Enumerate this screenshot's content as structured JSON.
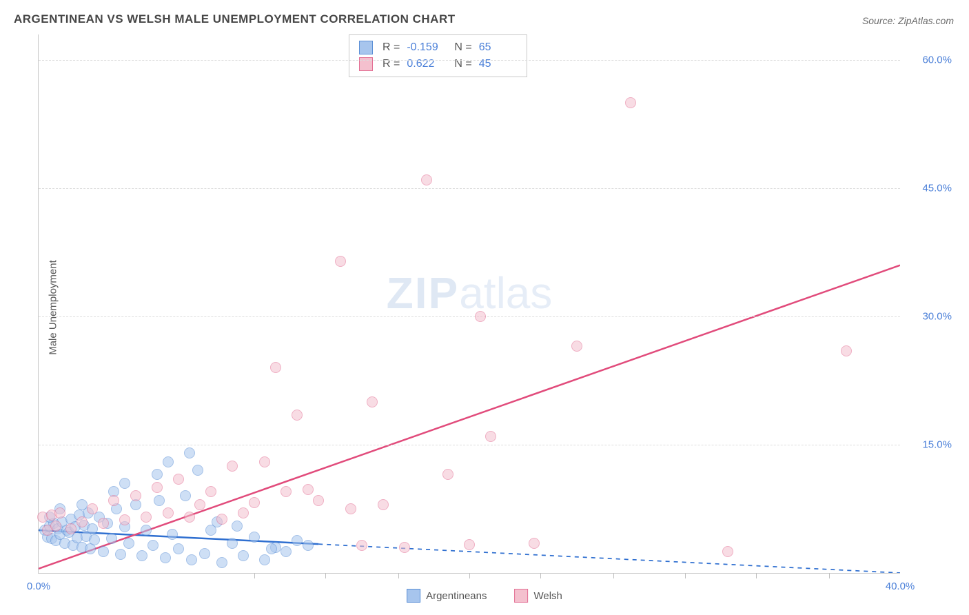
{
  "title": "ARGENTINEAN VS WELSH MALE UNEMPLOYMENT CORRELATION CHART",
  "source_prefix": "Source: ",
  "source_name": "ZipAtlas.com",
  "y_axis_label": "Male Unemployment",
  "watermark_zip": "ZIP",
  "watermark_atlas": "atlas",
  "chart": {
    "type": "scatter",
    "background_color": "#ffffff",
    "grid_color": "#dcdcdc",
    "axis_color": "#c8c8c8",
    "tick_label_color": "#4a7fd8",
    "tick_fontsize": 15,
    "x_range": [
      0,
      40
    ],
    "y_range": [
      0,
      63
    ],
    "y_ticks": [
      15,
      30,
      45,
      60
    ],
    "y_tick_labels": [
      "15.0%",
      "30.0%",
      "45.0%",
      "60.0%"
    ],
    "x_tick_start": "0.0%",
    "x_tick_end": "40.0%",
    "x_minor_ticks": [
      10,
      13.3,
      16.7,
      20,
      23.3,
      26.7,
      30,
      33.3,
      36.7
    ],
    "marker_radius": 8,
    "marker_opacity": 0.55,
    "series": [
      {
        "name": "Argentineans",
        "color_fill": "#a7c5ed",
        "color_stroke": "#5b8fd6",
        "R": "-0.159",
        "N": "65",
        "trend": {
          "x1": 0,
          "y1": 5.0,
          "x2": 40,
          "y2": 0.0,
          "solid_until_x": 13,
          "color": "#2f6fd0",
          "width": 2.5
        },
        "points": [
          [
            0.3,
            5.0
          ],
          [
            0.4,
            4.2
          ],
          [
            0.5,
            5.5
          ],
          [
            0.6,
            4.0
          ],
          [
            0.7,
            5.8
          ],
          [
            0.8,
            3.8
          ],
          [
            0.9,
            5.2
          ],
          [
            1.0,
            4.5
          ],
          [
            1.1,
            6.0
          ],
          [
            1.2,
            3.5
          ],
          [
            1.3,
            5.0
          ],
          [
            1.4,
            4.8
          ],
          [
            1.5,
            6.3
          ],
          [
            1.6,
            3.2
          ],
          [
            1.7,
            5.4
          ],
          [
            1.8,
            4.1
          ],
          [
            1.9,
            6.8
          ],
          [
            2.0,
            3.0
          ],
          [
            2.1,
            5.6
          ],
          [
            2.2,
            4.3
          ],
          [
            2.3,
            7.0
          ],
          [
            2.4,
            2.8
          ],
          [
            2.5,
            5.2
          ],
          [
            2.6,
            3.9
          ],
          [
            2.8,
            6.5
          ],
          [
            3.0,
            2.5
          ],
          [
            3.2,
            5.8
          ],
          [
            3.4,
            4.0
          ],
          [
            3.6,
            7.5
          ],
          [
            3.8,
            2.2
          ],
          [
            4.0,
            5.4
          ],
          [
            4.2,
            3.5
          ],
          [
            4.5,
            8.0
          ],
          [
            4.8,
            2.0
          ],
          [
            5.0,
            5.0
          ],
          [
            5.3,
            3.2
          ],
          [
            5.6,
            8.5
          ],
          [
            5.9,
            1.8
          ],
          [
            6.2,
            4.5
          ],
          [
            6.5,
            2.8
          ],
          [
            6.8,
            9.0
          ],
          [
            7.1,
            1.5
          ],
          [
            7.4,
            12.0
          ],
          [
            7.7,
            2.3
          ],
          [
            8.0,
            5.0
          ],
          [
            8.5,
            1.2
          ],
          [
            9.0,
            3.5
          ],
          [
            9.5,
            2.0
          ],
          [
            10.0,
            4.2
          ],
          [
            10.5,
            1.5
          ],
          [
            11.0,
            3.0
          ],
          [
            11.5,
            2.5
          ],
          [
            12.0,
            3.8
          ],
          [
            7.0,
            14.0
          ],
          [
            3.5,
            9.5
          ],
          [
            2.0,
            8.0
          ],
          [
            1.0,
            7.5
          ],
          [
            0.5,
            6.5
          ],
          [
            4.0,
            10.5
          ],
          [
            5.5,
            11.5
          ],
          [
            6.0,
            13.0
          ],
          [
            8.3,
            6.0
          ],
          [
            9.2,
            5.5
          ],
          [
            10.8,
            2.8
          ],
          [
            12.5,
            3.2
          ]
        ]
      },
      {
        "name": "Welsh",
        "color_fill": "#f4c0ce",
        "color_stroke": "#e36f94",
        "R": "0.622",
        "N": "45",
        "trend": {
          "x1": 0,
          "y1": 0.5,
          "x2": 40,
          "y2": 36.0,
          "solid_until_x": 40,
          "color": "#e14b7b",
          "width": 2.5
        },
        "points": [
          [
            0.2,
            6.5
          ],
          [
            0.4,
            5.0
          ],
          [
            0.6,
            6.8
          ],
          [
            0.8,
            5.5
          ],
          [
            1.0,
            7.0
          ],
          [
            1.5,
            5.2
          ],
          [
            2.0,
            6.0
          ],
          [
            2.5,
            7.5
          ],
          [
            3.0,
            5.8
          ],
          [
            3.5,
            8.5
          ],
          [
            4.0,
            6.2
          ],
          [
            4.5,
            9.0
          ],
          [
            5.0,
            6.5
          ],
          [
            5.5,
            10.0
          ],
          [
            6.0,
            7.0
          ],
          [
            6.5,
            11.0
          ],
          [
            7.0,
            6.5
          ],
          [
            7.5,
            8.0
          ],
          [
            8.0,
            9.5
          ],
          [
            8.5,
            6.3
          ],
          [
            9.0,
            12.5
          ],
          [
            9.5,
            7.0
          ],
          [
            10.0,
            8.2
          ],
          [
            10.5,
            13.0
          ],
          [
            11.0,
            24.0
          ],
          [
            11.5,
            9.5
          ],
          [
            12.0,
            18.5
          ],
          [
            13.0,
            8.5
          ],
          [
            14.0,
            36.5
          ],
          [
            14.5,
            7.5
          ],
          [
            15.5,
            20.0
          ],
          [
            16.0,
            8.0
          ],
          [
            17.0,
            3.0
          ],
          [
            18.0,
            46.0
          ],
          [
            19.0,
            11.5
          ],
          [
            20.0,
            3.3
          ],
          [
            20.5,
            30.0
          ],
          [
            21.0,
            16.0
          ],
          [
            23.0,
            3.5
          ],
          [
            25.0,
            26.5
          ],
          [
            27.5,
            55.0
          ],
          [
            32.0,
            2.5
          ],
          [
            37.5,
            26.0
          ],
          [
            15.0,
            3.2
          ],
          [
            12.5,
            9.8
          ]
        ]
      }
    ]
  },
  "stats_labels": {
    "R": "R =",
    "N": "N ="
  },
  "legend": {
    "series1_label": "Argentineans",
    "series2_label": "Welsh"
  }
}
